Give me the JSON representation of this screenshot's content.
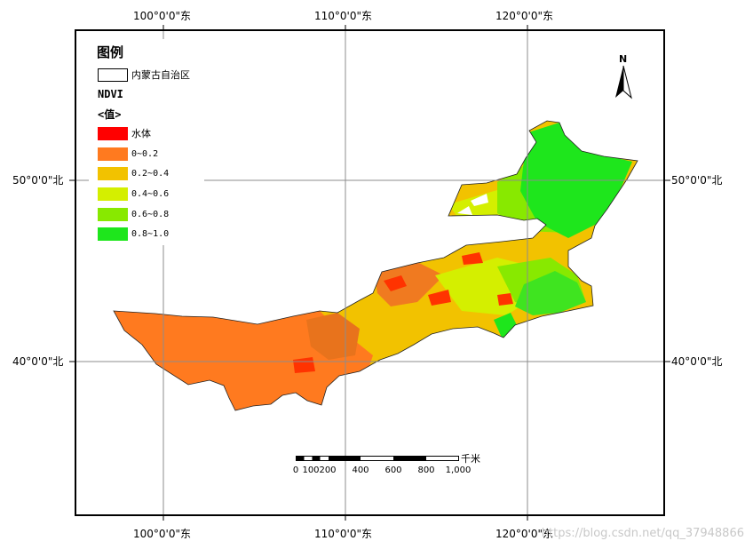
{
  "graticule": {
    "lon_labels": [
      "100°0'0\"东",
      "110°0'0\"东",
      "120°0'0\"东"
    ],
    "lat_labels": [
      "50°0'0\"北",
      "40°0'0\"北"
    ]
  },
  "legend": {
    "title": "图例",
    "region_label": "内蒙古自治区",
    "ndvi_title": "NDVI",
    "value_title": "<值>",
    "classes": [
      {
        "label": "水体",
        "color": "#ff0000"
      },
      {
        "label": "0~0.2",
        "color": "#ff7a1f"
      },
      {
        "label": "0.2~0.4",
        "color": "#f2c200"
      },
      {
        "label": "0.4~0.6",
        "color": "#d4ef00"
      },
      {
        "label": "0.6~0.8",
        "color": "#88e900"
      },
      {
        "label": "0.8~1.0",
        "color": "#1ee61c"
      }
    ]
  },
  "north_arrow": {
    "letter": "N"
  },
  "scale_bar": {
    "unit": "千米",
    "ticks": [
      "0",
      "100",
      "200",
      "400",
      "600",
      "800",
      "1,000"
    ]
  },
  "watermark": "https://blog.csdn.net/qq_37948866"
}
